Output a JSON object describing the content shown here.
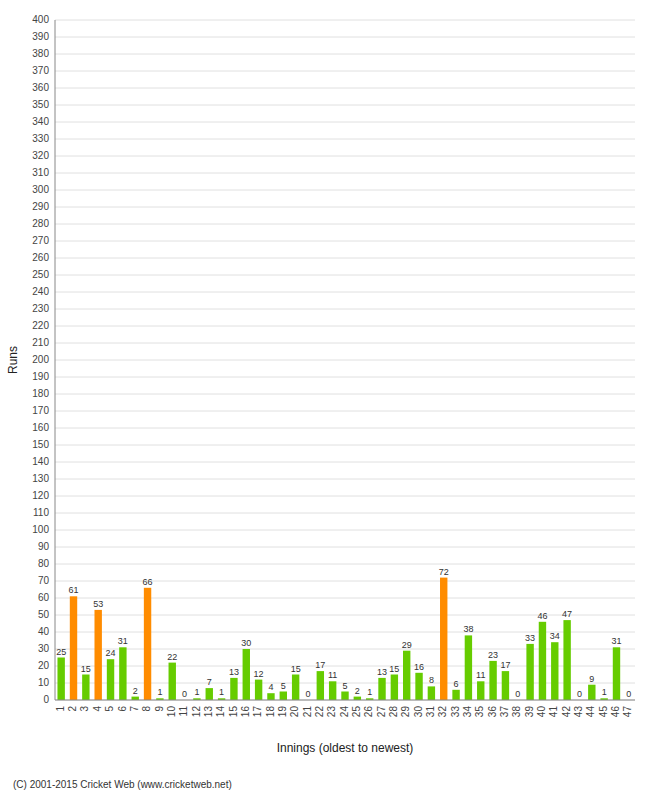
{
  "chart_data": {
    "type": "bar",
    "xlabel": "Innings (oldest to newest)",
    "ylabel": "Runs",
    "annotations": [
      "(C) 2001-2015 Cricket Web (www.cricketweb.net)"
    ],
    "categories": [
      "1",
      "2",
      "3",
      "4",
      "5",
      "6",
      "7",
      "8",
      "9",
      "10",
      "11",
      "12",
      "13",
      "14",
      "15",
      "16",
      "17",
      "18",
      "19",
      "20",
      "21",
      "22",
      "23",
      "24",
      "25",
      "26",
      "27",
      "28",
      "29",
      "30",
      "31",
      "32",
      "33",
      "34",
      "35",
      "36",
      "37",
      "38",
      "39",
      "40",
      "41",
      "42",
      "43",
      "44",
      "45",
      "46",
      "47"
    ],
    "values": [
      25,
      61,
      15,
      53,
      24,
      31,
      2,
      66,
      1,
      22,
      0,
      1,
      7,
      1,
      13,
      30,
      12,
      4,
      5,
      15,
      0,
      17,
      11,
      5,
      2,
      1,
      13,
      15,
      29,
      16,
      8,
      72,
      6,
      38,
      11,
      23,
      17,
      0,
      33,
      46,
      34,
      47,
      0,
      9,
      1,
      31,
      0
    ],
    "colors": [
      "#66cc00",
      "#ff8c00",
      "#66cc00",
      "#ff8c00",
      "#66cc00",
      "#66cc00",
      "#66cc00",
      "#ff8c00",
      "#66cc00",
      "#66cc00",
      "#66cc00",
      "#66cc00",
      "#66cc00",
      "#66cc00",
      "#66cc00",
      "#66cc00",
      "#66cc00",
      "#66cc00",
      "#66cc00",
      "#66cc00",
      "#66cc00",
      "#66cc00",
      "#66cc00",
      "#66cc00",
      "#66cc00",
      "#66cc00",
      "#66cc00",
      "#66cc00",
      "#66cc00",
      "#66cc00",
      "#66cc00",
      "#ff8c00",
      "#66cc00",
      "#66cc00",
      "#66cc00",
      "#66cc00",
      "#66cc00",
      "#66cc00",
      "#66cc00",
      "#66cc00",
      "#66cc00",
      "#66cc00",
      "#66cc00",
      "#66cc00",
      "#66cc00",
      "#66cc00",
      "#66cc00"
    ],
    "ylim": [
      0,
      400
    ],
    "yticks": [
      0,
      10,
      20,
      30,
      40,
      50,
      60,
      70,
      80,
      90,
      100,
      110,
      120,
      130,
      140,
      150,
      160,
      170,
      180,
      190,
      200,
      210,
      220,
      230,
      240,
      250,
      260,
      270,
      280,
      290,
      300,
      310,
      320,
      330,
      340,
      350,
      360,
      370,
      380,
      390,
      400
    ],
    "grid": true,
    "data_labels": true
  }
}
